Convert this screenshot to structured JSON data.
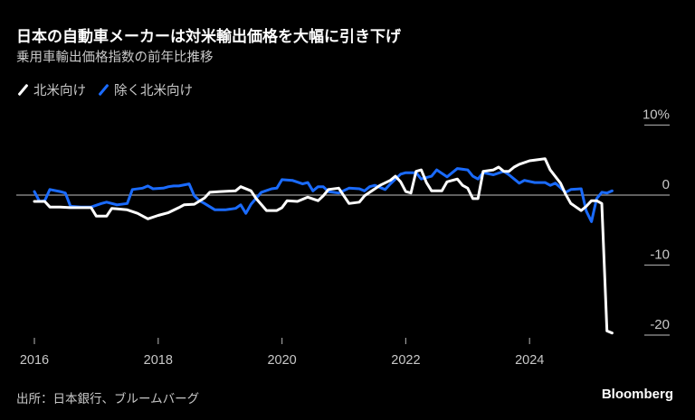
{
  "header": {
    "title": "日本の自動車メーカーは対米輸出価格を大幅に引き下げ",
    "subtitle": "乗用車輸出価格指数の前年比推移"
  },
  "footer": {
    "source": "出所：日本銀行、ブルームバーグ",
    "brand": "Bloomberg"
  },
  "chart_data": {
    "type": "line",
    "title": "日本の自動車メーカーは対米輸出価格を大幅に引き下げ",
    "subtitle": "乗用車輸出価格指数の前年比推移",
    "xlabel": "",
    "ylabel": "",
    "x_ticks": [
      "2016",
      "2018",
      "2020",
      "2022",
      "2024"
    ],
    "y_ticks": [
      {
        "value": 10,
        "label": "10%"
      },
      {
        "value": 0,
        "label": "0"
      },
      {
        "value": -10,
        "label": "-10"
      },
      {
        "value": -20,
        "label": "-20"
      }
    ],
    "ylim": [
      -21,
      12
    ],
    "xlim": [
      "2016-01",
      "2025-05"
    ],
    "grid": false,
    "zero_line": true,
    "legend_position": "top-left",
    "series": [
      {
        "name": "北米向け",
        "color": "#ffffff",
        "points": [
          [
            "2016-01",
            -0.9
          ],
          [
            "2016-03",
            -0.9
          ],
          [
            "2016-04",
            -1.7
          ],
          [
            "2016-06",
            -1.7
          ],
          [
            "2016-08",
            -1.8
          ],
          [
            "2016-12",
            -1.8
          ],
          [
            "2017-01",
            -3.0
          ],
          [
            "2017-03",
            -3.0
          ],
          [
            "2017-04",
            -1.9
          ],
          [
            "2017-07",
            -2.1
          ],
          [
            "2017-09",
            -2.6
          ],
          [
            "2017-11",
            -3.4
          ],
          [
            "2018-01",
            -2.9
          ],
          [
            "2018-03",
            -2.5
          ],
          [
            "2018-05",
            -1.8
          ],
          [
            "2018-06",
            -1.4
          ],
          [
            "2018-08",
            -1.3
          ],
          [
            "2018-10",
            -0.4
          ],
          [
            "2018-11",
            0.4
          ],
          [
            "2019-01",
            0.5
          ],
          [
            "2019-04",
            0.6
          ],
          [
            "2019-05",
            1.2
          ],
          [
            "2019-07",
            0.6
          ],
          [
            "2019-08",
            -0.5
          ],
          [
            "2019-10",
            -2.2
          ],
          [
            "2019-12",
            -2.2
          ],
          [
            "2020-01",
            -1.8
          ],
          [
            "2020-02",
            -0.8
          ],
          [
            "2020-04",
            -0.9
          ],
          [
            "2020-06",
            -0.3
          ],
          [
            "2020-08",
            -0.8
          ],
          [
            "2020-09",
            -0.1
          ],
          [
            "2020-10",
            0.8
          ],
          [
            "2020-12",
            1.0
          ],
          [
            "2021-02",
            -1.2
          ],
          [
            "2021-04",
            -1.0
          ],
          [
            "2021-05",
            -0.1
          ],
          [
            "2021-08",
            1.4
          ],
          [
            "2021-10",
            2.1
          ],
          [
            "2021-11",
            2.7
          ],
          [
            "2021-12",
            1.9
          ],
          [
            "2022-01",
            0.5
          ],
          [
            "2022-02",
            0.3
          ],
          [
            "2022-03",
            3.4
          ],
          [
            "2022-04",
            3.6
          ],
          [
            "2022-05",
            1.8
          ],
          [
            "2022-06",
            0.6
          ],
          [
            "2022-08",
            0.6
          ],
          [
            "2022-09",
            1.9
          ],
          [
            "2022-11",
            2.3
          ],
          [
            "2022-12",
            1.4
          ],
          [
            "2023-01",
            1.0
          ],
          [
            "2023-02",
            -0.5
          ],
          [
            "2023-03",
            -0.5
          ],
          [
            "2023-04",
            3.4
          ],
          [
            "2023-06",
            3.6
          ],
          [
            "2023-07",
            4.0
          ],
          [
            "2023-08",
            3.4
          ],
          [
            "2023-09",
            3.4
          ],
          [
            "2023-10",
            4.0
          ],
          [
            "2023-11",
            4.4
          ],
          [
            "2024-01",
            4.9
          ],
          [
            "2024-03",
            5.1
          ],
          [
            "2024-04",
            5.2
          ],
          [
            "2024-05",
            3.6
          ],
          [
            "2024-07",
            1.7
          ],
          [
            "2024-08",
            0.1
          ],
          [
            "2024-09",
            -1.2
          ],
          [
            "2024-11",
            -2.2
          ],
          [
            "2024-12",
            -1.6
          ],
          [
            "2025-01",
            -0.8
          ],
          [
            "2025-02",
            -0.8
          ],
          [
            "2025-03",
            -1.2
          ],
          [
            "2025-04",
            -19.4
          ],
          [
            "2025-05",
            -19.7
          ]
        ]
      },
      {
        "name": "除く北米向け",
        "color": "#1a6bff",
        "points": [
          [
            "2016-01",
            0.5
          ],
          [
            "2016-02",
            -0.9
          ],
          [
            "2016-03",
            -0.8
          ],
          [
            "2016-04",
            0.8
          ],
          [
            "2016-06",
            0.5
          ],
          [
            "2016-07",
            0.3
          ],
          [
            "2016-08",
            -1.6
          ],
          [
            "2016-10",
            -1.7
          ],
          [
            "2016-12",
            -1.7
          ],
          [
            "2017-02",
            -1.2
          ],
          [
            "2017-03",
            -1.0
          ],
          [
            "2017-05",
            -1.4
          ],
          [
            "2017-07",
            -1.2
          ],
          [
            "2017-08",
            0.8
          ],
          [
            "2017-10",
            1.0
          ],
          [
            "2017-11",
            1.3
          ],
          [
            "2017-12",
            0.9
          ],
          [
            "2018-02",
            1.0
          ],
          [
            "2018-03",
            1.2
          ],
          [
            "2018-04",
            1.3
          ],
          [
            "2018-05",
            1.3
          ],
          [
            "2018-07",
            1.6
          ],
          [
            "2018-08",
            -0.1
          ],
          [
            "2018-09",
            -0.8
          ],
          [
            "2018-10",
            -1.2
          ],
          [
            "2018-12",
            -2.1
          ],
          [
            "2019-02",
            -2.1
          ],
          [
            "2019-04",
            -1.9
          ],
          [
            "2019-05",
            -1.4
          ],
          [
            "2019-06",
            -2.6
          ],
          [
            "2019-07",
            -1.3
          ],
          [
            "2019-09",
            0.4
          ],
          [
            "2019-11",
            0.9
          ],
          [
            "2019-12",
            1.0
          ],
          [
            "2020-01",
            2.2
          ],
          [
            "2020-03",
            2.1
          ],
          [
            "2020-05",
            1.6
          ],
          [
            "2020-06",
            1.8
          ],
          [
            "2020-07",
            0.6
          ],
          [
            "2020-08",
            1.2
          ],
          [
            "2020-09",
            1.2
          ],
          [
            "2020-10",
            0.5
          ],
          [
            "2020-12",
            0.3
          ],
          [
            "2021-02",
            1.0
          ],
          [
            "2021-04",
            0.9
          ],
          [
            "2021-05",
            0.6
          ],
          [
            "2021-06",
            1.2
          ],
          [
            "2021-07",
            1.4
          ],
          [
            "2021-09",
            0.8
          ],
          [
            "2021-10",
            1.6
          ],
          [
            "2021-12",
            3.0
          ],
          [
            "2022-01",
            3.2
          ],
          [
            "2022-03",
            3.2
          ],
          [
            "2022-04",
            2.3
          ],
          [
            "2022-05",
            2.5
          ],
          [
            "2022-06",
            2.7
          ],
          [
            "2022-07",
            3.6
          ],
          [
            "2022-09",
            2.6
          ],
          [
            "2022-11",
            3.8
          ],
          [
            "2023-01",
            3.6
          ],
          [
            "2023-02",
            2.7
          ],
          [
            "2023-03",
            2.3
          ],
          [
            "2023-04",
            3.2
          ],
          [
            "2023-06",
            2.9
          ],
          [
            "2023-08",
            3.4
          ],
          [
            "2023-09",
            2.9
          ],
          [
            "2023-11",
            1.7
          ],
          [
            "2023-12",
            2.1
          ],
          [
            "2024-02",
            1.8
          ],
          [
            "2024-04",
            1.8
          ],
          [
            "2024-05",
            1.4
          ],
          [
            "2024-06",
            1.7
          ],
          [
            "2024-08",
            0.4
          ],
          [
            "2024-09",
            0.8
          ],
          [
            "2024-11",
            0.9
          ],
          [
            "2024-12",
            -2.3
          ],
          [
            "2025-01",
            -3.8
          ],
          [
            "2025-02",
            -0.5
          ],
          [
            "2025-03",
            0.4
          ],
          [
            "2025-04",
            0.3
          ],
          [
            "2025-05",
            0.6
          ]
        ]
      }
    ]
  }
}
